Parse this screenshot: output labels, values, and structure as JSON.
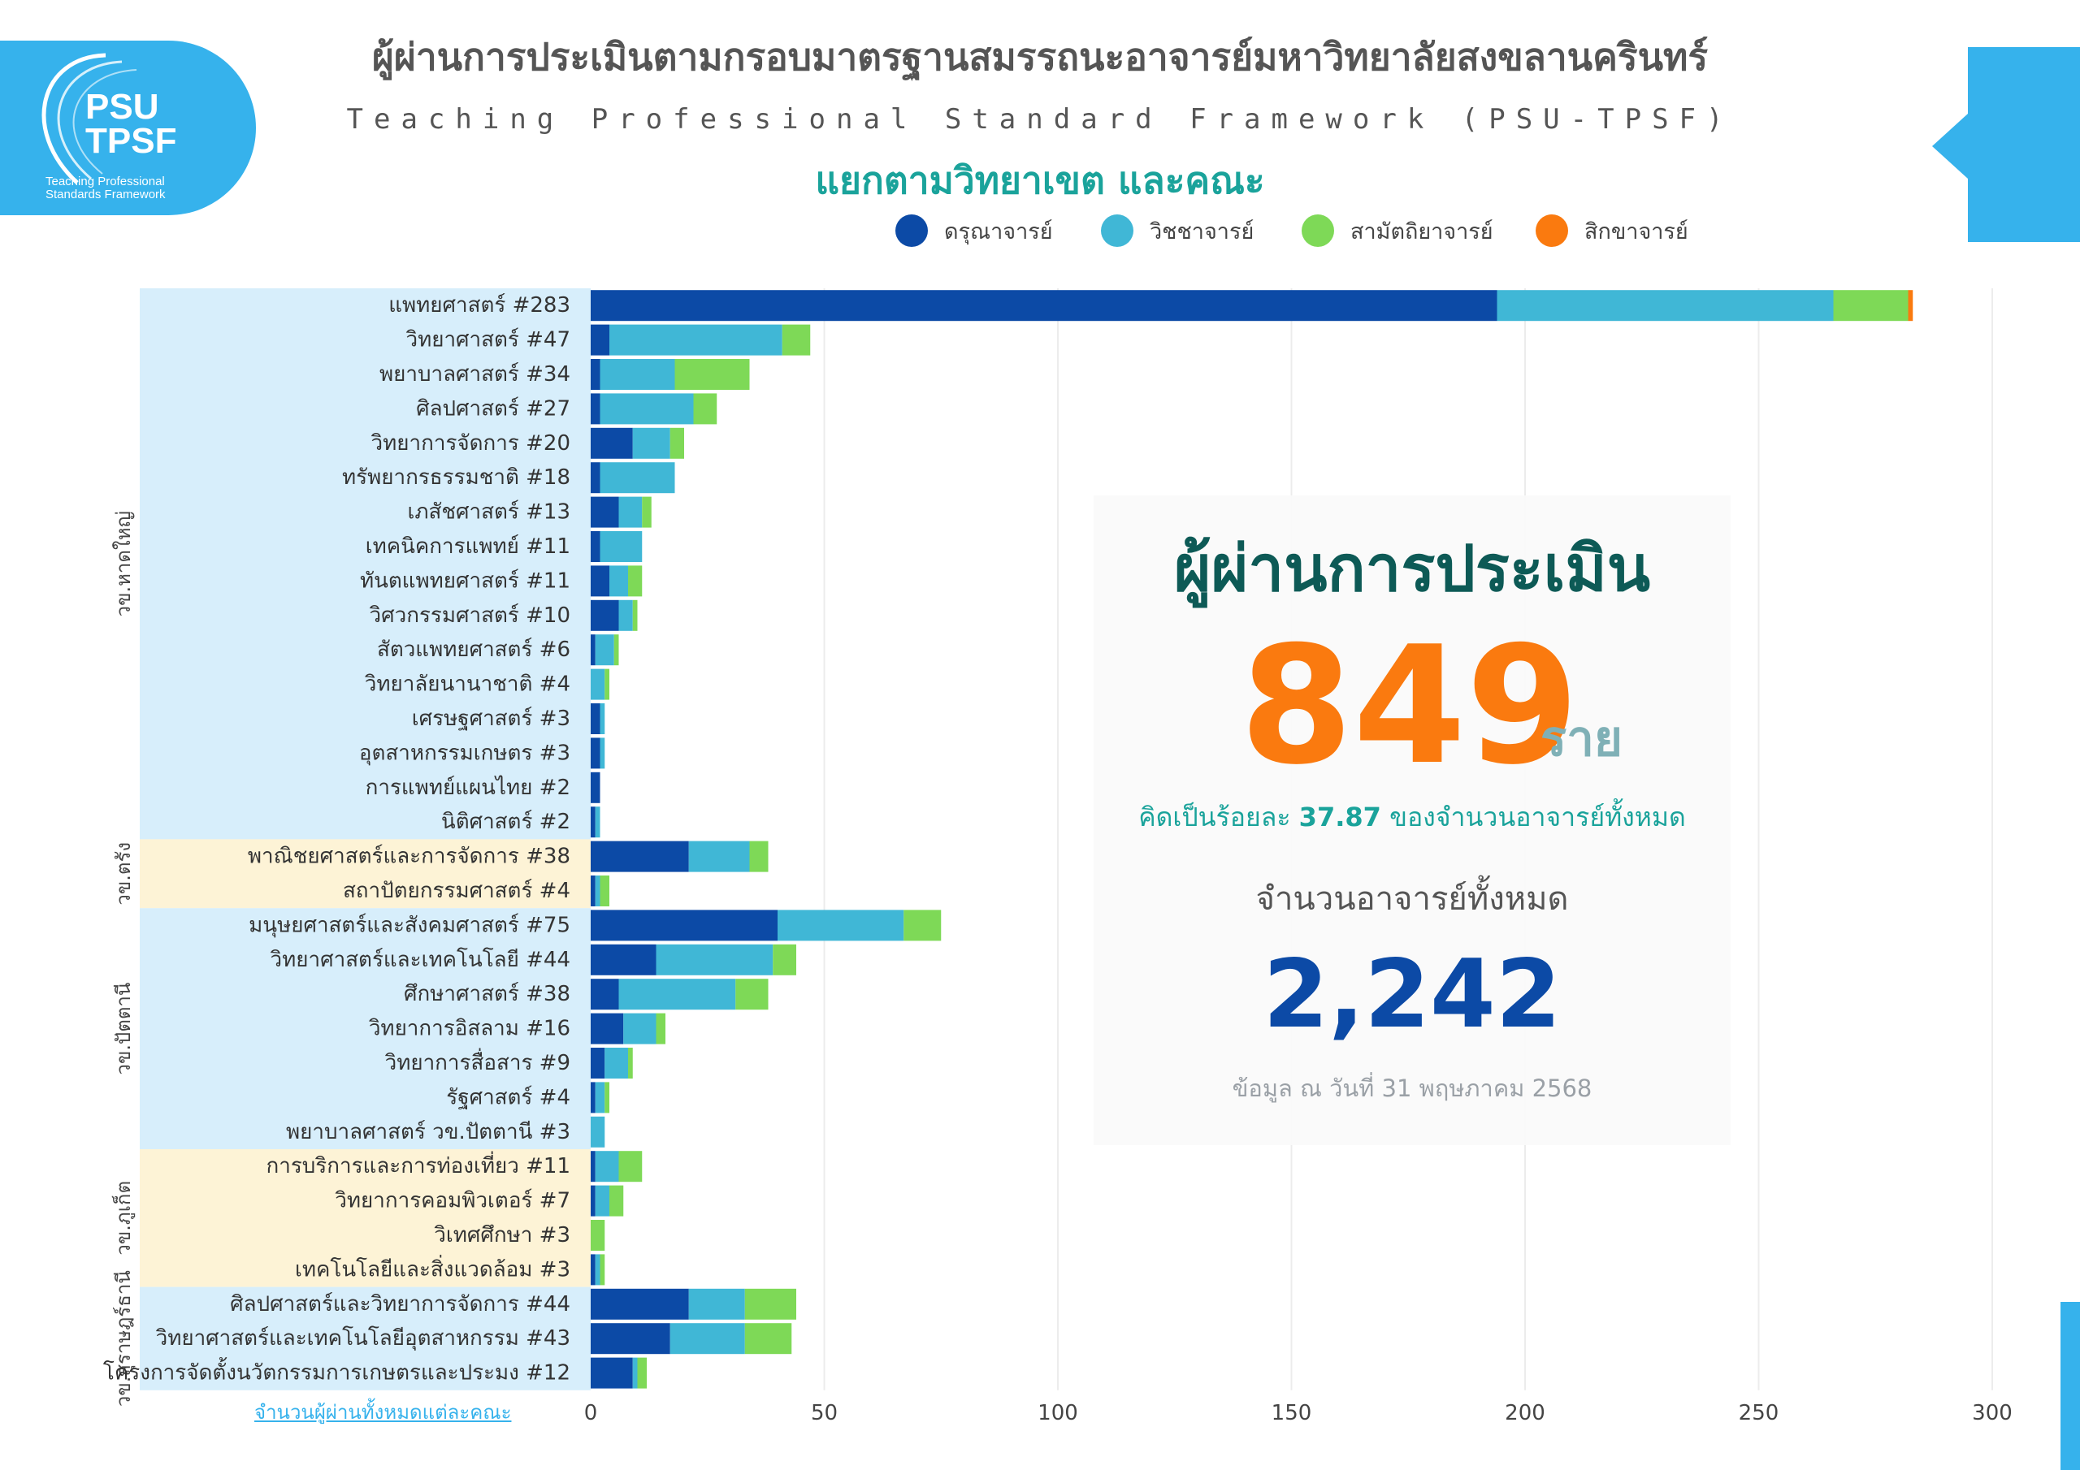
{
  "logo": {
    "line1": "PSU",
    "line2": "TPSF",
    "small1": "Teaching Professional",
    "small2": "Standards Framework"
  },
  "title": "ผู้ผ่านการประเมินตามกรอบมาตรฐานสมรรถนะอาจารย์มหาวิทยาลัยสงขลานครินทร์",
  "subtitle": "Teaching Professional Standard Framework (PSU-TPSF)",
  "subtitle2": "แยกตามวิทยาเขต และคณะ",
  "colors": {
    "accent": "#36b2ec",
    "teal": "#1aa39b",
    "orange": "#fa7a0f",
    "navy": "#0c4aa6"
  },
  "summary": {
    "heading": "ผู้ผ่านการประเมิน",
    "passed": "849",
    "unit": "ราย",
    "pct_prefix": "คิดเป็นร้อยละ ",
    "pct_value": "37.87",
    "pct_suffix": " ของจำนวนอาจารย์ทั้งหมด",
    "total_label": "จำนวนอาจารย์ทั้งหมด",
    "total": "2,242",
    "date": "ข้อมูล ณ วันที่ 31 พฤษภาคม 2568"
  },
  "footer_link": "จำนวนผู้ผ่านทั้งหมดแต่ละคณะ",
  "chart_data": {
    "type": "bar",
    "orientation": "horizontal",
    "stacked": true,
    "xlim": [
      0,
      300
    ],
    "xticks": [
      0,
      50,
      100,
      150,
      200,
      250,
      300
    ],
    "legend_position": "top-right",
    "grid": true,
    "series": [
      {
        "name": "ดรุณาจารย์",
        "color": "#0c4aa6"
      },
      {
        "name": "วิชชาจารย์",
        "color": "#40b7d6"
      },
      {
        "name": "สามัตถิยาจารย์",
        "color": "#7ed957"
      },
      {
        "name": "สิกขาจารย์",
        "color": "#fa7a0f"
      }
    ],
    "groups": [
      {
        "name": "วข.หาดใหญ่",
        "color": "#d7eefb",
        "rows": [
          {
            "label": "แพทยศาสตร์ #283",
            "values": [
              194,
              72,
              16,
              1
            ]
          },
          {
            "label": "วิทยาศาสตร์ #47",
            "values": [
              4,
              37,
              6,
              0
            ]
          },
          {
            "label": "พยาบาลศาสตร์ #34",
            "values": [
              2,
              16,
              16,
              0
            ]
          },
          {
            "label": "ศิลปศาสตร์ #27",
            "values": [
              2,
              20,
              5,
              0
            ]
          },
          {
            "label": "วิทยาการจัดการ #20",
            "values": [
              9,
              8,
              3,
              0
            ]
          },
          {
            "label": "ทรัพยากรธรรมชาติ #18",
            "values": [
              2,
              16,
              0,
              0
            ]
          },
          {
            "label": "เภสัชศาสตร์ #13",
            "values": [
              6,
              5,
              2,
              0
            ]
          },
          {
            "label": "เทคนิคการแพทย์ #11",
            "values": [
              2,
              9,
              0,
              0
            ]
          },
          {
            "label": "ทันตแพทยศาสตร์ #11",
            "values": [
              4,
              4,
              3,
              0
            ]
          },
          {
            "label": "วิศวกรรมศาสตร์ #10",
            "values": [
              6,
              3,
              1,
              0
            ]
          },
          {
            "label": "สัตวแพทยศาสตร์ #6",
            "values": [
              1,
              4,
              1,
              0
            ]
          },
          {
            "label": "วิทยาลัยนานาชาติ #4",
            "values": [
              0,
              3,
              1,
              0
            ]
          },
          {
            "label": "เศรษฐศาสตร์ #3",
            "values": [
              2,
              1,
              0,
              0
            ]
          },
          {
            "label": "อุตสาหกรรมเกษตร #3",
            "values": [
              2,
              1,
              0,
              0
            ]
          },
          {
            "label": "การแพทย์แผนไทย #2",
            "values": [
              2,
              0,
              0,
              0
            ]
          },
          {
            "label": "นิติศาสตร์ #2",
            "values": [
              1,
              1,
              0,
              0
            ]
          }
        ]
      },
      {
        "name": "วข.ตรัง",
        "color": "#fdf3d6",
        "rows": [
          {
            "label": "พาณิชยศาสตร์และการจัดการ #38",
            "values": [
              21,
              13,
              4,
              0
            ]
          },
          {
            "label": "สถาปัตยกรรมศาสตร์ #4",
            "values": [
              1,
              1,
              2,
              0
            ]
          }
        ]
      },
      {
        "name": "วข.ปัตตานี",
        "color": "#d7eefb",
        "rows": [
          {
            "label": "มนุษยศาสตร์และสังคมศาสตร์ #75",
            "values": [
              40,
              27,
              8,
              0
            ]
          },
          {
            "label": "วิทยาศาสตร์และเทคโนโลยี #44",
            "values": [
              14,
              25,
              5,
              0
            ]
          },
          {
            "label": "ศึกษาศาสตร์ #38",
            "values": [
              6,
              25,
              7,
              0
            ]
          },
          {
            "label": "วิทยาการอิสลาม #16",
            "values": [
              7,
              7,
              2,
              0
            ]
          },
          {
            "label": "วิทยาการสื่อสาร #9",
            "values": [
              3,
              5,
              1,
              0
            ]
          },
          {
            "label": "รัฐศาสตร์ #4",
            "values": [
              1,
              2,
              1,
              0
            ]
          },
          {
            "label": "พยาบาลศาสตร์ วข.ปัตตานี #3",
            "values": [
              0,
              3,
              0,
              0
            ]
          }
        ]
      },
      {
        "name": "วข.ภูเก็ต",
        "color": "#fdf3d6",
        "rows": [
          {
            "label": "การบริการและการท่องเที่ยว #11",
            "values": [
              1,
              5,
              5,
              0
            ]
          },
          {
            "label": "วิทยาการคอมพิวเตอร์ #7",
            "values": [
              1,
              3,
              3,
              0
            ]
          },
          {
            "label": "วิเทศศึกษา #3",
            "values": [
              0,
              0,
              3,
              0
            ]
          },
          {
            "label": "เทคโนโลยีและสิ่งแวดล้อม #3",
            "values": [
              1,
              1,
              1,
              0
            ]
          }
        ]
      },
      {
        "name": "วข.สุราษฎร์ธานี",
        "color": "#d7eefb",
        "rows": [
          {
            "label": "ศิลปศาสตร์และวิทยาการจัดการ #44",
            "values": [
              21,
              12,
              11,
              0
            ]
          },
          {
            "label": "วิทยาศาสตร์และเทคโนโลยีอุตสาหกรรม #43",
            "values": [
              17,
              16,
              10,
              0
            ]
          },
          {
            "label": "โครงการจัดตั้งนวัตกรรมการเกษตรและประมง #12",
            "values": [
              9,
              1,
              2,
              0
            ]
          }
        ]
      }
    ]
  }
}
